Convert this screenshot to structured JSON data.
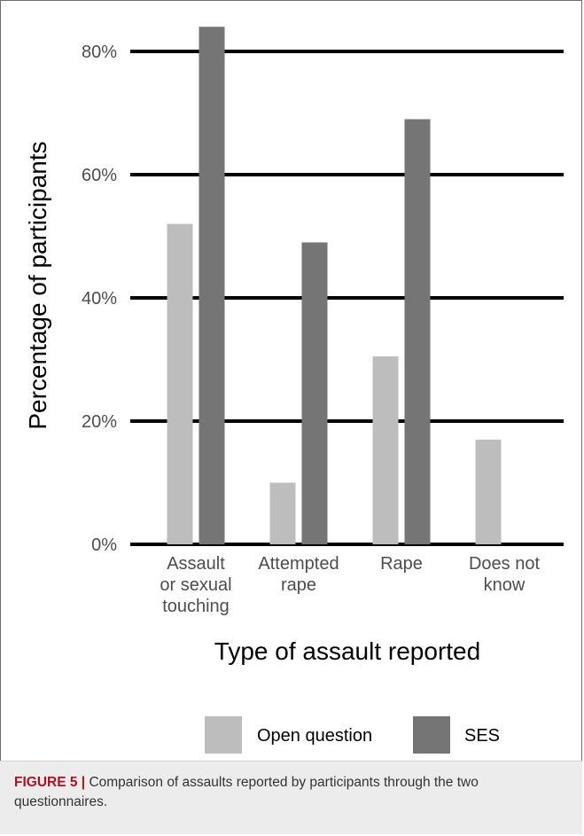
{
  "chart_data": {
    "type": "bar",
    "categories": [
      [
        "Assault",
        "or sexual",
        "touching"
      ],
      [
        "Attempted",
        "rape"
      ],
      [
        "Rape"
      ],
      [
        "Does not",
        "know"
      ]
    ],
    "series": [
      {
        "name": "Open question",
        "color": "#bdbdbd",
        "values": [
          52,
          10,
          30.5,
          17
        ]
      },
      {
        "name": "SES",
        "color": "#757575",
        "values": [
          84,
          49,
          69,
          0
        ]
      }
    ],
    "ylim": [
      0,
      80
    ],
    "yticks": [
      0,
      20,
      40,
      60,
      80
    ],
    "ytick_labels": [
      "0%",
      "20%",
      "40%",
      "60%",
      "80%"
    ],
    "xlabel": "Type of assault reported",
    "ylabel": "Percentage of participants",
    "grid": true,
    "legend_position": "bottom"
  },
  "caption": {
    "label": "FIGURE 5 |",
    "text": " Comparison of assaults reported by participants through the two questionnaires."
  }
}
